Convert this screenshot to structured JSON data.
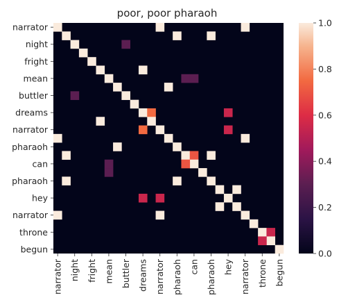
{
  "chart_data": {
    "type": "heatmap",
    "title": "poor, poor pharaoh",
    "x_labels": [
      "narrator",
      "",
      "night",
      "",
      "fright",
      "",
      "mean",
      "",
      "buttler",
      "",
      "dreams",
      "",
      "narrator",
      "",
      "pharaoh",
      "",
      "can",
      "",
      "pharaoh",
      "",
      "hey",
      "",
      "narrator",
      "",
      "throne",
      "",
      "begun"
    ],
    "y_labels": [
      "narrator",
      "",
      "night",
      "",
      "fright",
      "",
      "mean",
      "",
      "buttler",
      "",
      "dreams",
      "",
      "narrator",
      "",
      "pharaoh",
      "",
      "can",
      "",
      "pharaoh",
      "",
      "hey",
      "",
      "narrator",
      "",
      "throne",
      "",
      "begun"
    ],
    "colorbar": {
      "min": 0.0,
      "max": 1.0,
      "ticks": [
        "0.0",
        "0.2",
        "0.4",
        "0.6",
        "0.8",
        "1.0"
      ]
    },
    "cells": [
      [
        0,
        0,
        1.0
      ],
      [
        0,
        12,
        1.0
      ],
      [
        0,
        22,
        1.0
      ],
      [
        1,
        1,
        1.0
      ],
      [
        1,
        14,
        1.0
      ],
      [
        1,
        18,
        1.0
      ],
      [
        2,
        2,
        1.0
      ],
      [
        2,
        8,
        0.3
      ],
      [
        3,
        3,
        1.0
      ],
      [
        4,
        4,
        1.0
      ],
      [
        5,
        5,
        1.0
      ],
      [
        5,
        10,
        1.0
      ],
      [
        6,
        6,
        1.0
      ],
      [
        6,
        15,
        0.3
      ],
      [
        6,
        16,
        0.3
      ],
      [
        7,
        7,
        1.0
      ],
      [
        7,
        13,
        1.0
      ],
      [
        8,
        8,
        1.0
      ],
      [
        8,
        2,
        0.3
      ],
      [
        9,
        9,
        1.0
      ],
      [
        10,
        10,
        1.0
      ],
      [
        10,
        11,
        0.75
      ],
      [
        10,
        20,
        0.55
      ],
      [
        11,
        11,
        1.0
      ],
      [
        11,
        5,
        1.0
      ],
      [
        12,
        12,
        1.0
      ],
      [
        12,
        10,
        0.75
      ],
      [
        12,
        20,
        0.55
      ],
      [
        13,
        13,
        1.0
      ],
      [
        13,
        0,
        1.0
      ],
      [
        13,
        22,
        1.0
      ],
      [
        14,
        14,
        1.0
      ],
      [
        14,
        7,
        1.0
      ],
      [
        15,
        15,
        1.0
      ],
      [
        15,
        1,
        1.0
      ],
      [
        15,
        18,
        1.0
      ],
      [
        15,
        16,
        0.7
      ],
      [
        16,
        16,
        1.0
      ],
      [
        16,
        6,
        0.3
      ],
      [
        16,
        15,
        0.7
      ],
      [
        17,
        17,
        1.0
      ],
      [
        17,
        6,
        0.3
      ],
      [
        18,
        18,
        1.0
      ],
      [
        18,
        1,
        1.0
      ],
      [
        18,
        14,
        1.0
      ],
      [
        19,
        19,
        1.0
      ],
      [
        19,
        21,
        1.0
      ],
      [
        20,
        20,
        1.0
      ],
      [
        20,
        10,
        0.55
      ],
      [
        20,
        12,
        0.55
      ],
      [
        21,
        21,
        1.0
      ],
      [
        21,
        19,
        1.0
      ],
      [
        22,
        22,
        1.0
      ],
      [
        22,
        0,
        1.0
      ],
      [
        22,
        12,
        1.0
      ],
      [
        23,
        23,
        1.0
      ],
      [
        24,
        24,
        1.0
      ],
      [
        24,
        25,
        0.55
      ],
      [
        25,
        25,
        1.0
      ],
      [
        25,
        24,
        0.55
      ],
      [
        26,
        26,
        1.0
      ]
    ]
  }
}
